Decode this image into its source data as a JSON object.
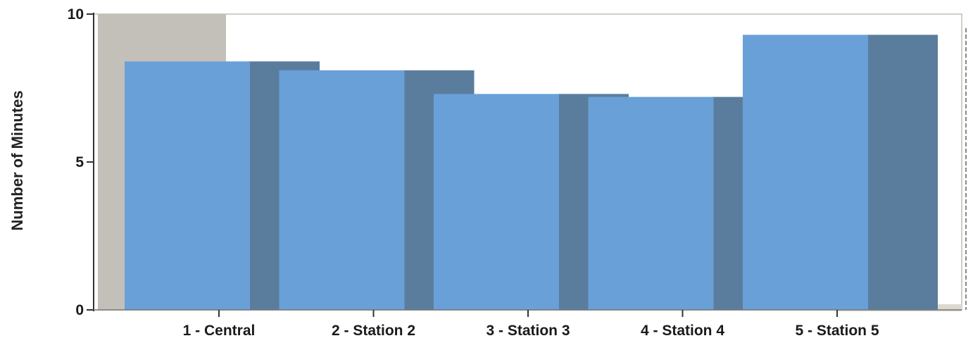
{
  "chart_data": {
    "type": "bar",
    "title": "",
    "xlabel": "",
    "ylabel": "Number of Minutes",
    "categories": [
      "1 - Central",
      "2 - Station 2",
      "3 - Station 3",
      "4 - Station 4",
      "5 - Station 5"
    ],
    "values": [
      8.4,
      8.1,
      7.3,
      7.2,
      9.3
    ],
    "ylim": [
      0,
      10
    ],
    "yticks": [
      0,
      5,
      10
    ],
    "grid": false,
    "legend": "none",
    "style": "3d-shaded"
  },
  "colors": {
    "bar_front": "#6aa0d8",
    "bar_side": "#5a7d9e",
    "back_wall_shade": "#c3c0b9",
    "floor_shade": "#dcd8cf",
    "plot_border": "#c2bdb4",
    "axis": "#333333"
  }
}
